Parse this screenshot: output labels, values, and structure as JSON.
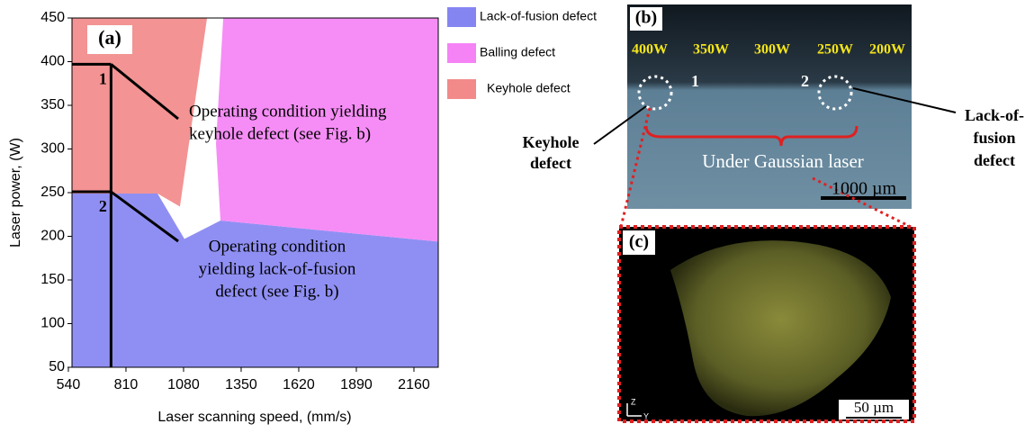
{
  "chart_data": {
    "type": "area",
    "panel_label": "(a)",
    "xlabel": "Laser scanning speed, (mm/s)",
    "ylabel": "Laser power, (W)",
    "xlim": [
      557,
      2274
    ],
    "ylim": [
      50,
      450
    ],
    "xticks": [
      540,
      810,
      1080,
      1350,
      1620,
      1890,
      2160
    ],
    "yticks": [
      50,
      100,
      150,
      200,
      250,
      300,
      350,
      400,
      450
    ],
    "series": [
      {
        "name": "Lack-of-fusion defect",
        "color": "#8585f2",
        "x": [
          557,
          958,
          1084,
          1253,
          2274,
          2274,
          557
        ],
        "values": [
          249,
          249,
          197,
          218,
          194,
          50,
          50
        ]
      },
      {
        "name": "Balling defect",
        "color": "#f583f5",
        "x": [
          1266,
          2274,
          2274,
          1253,
          1232
        ],
        "values": [
          450,
          450,
          194,
          218,
          306
        ]
      },
      {
        "name": "Keyhole defect",
        "color": "#f28a8a",
        "x": [
          557,
          1190,
          1063,
          958,
          557
        ],
        "values": [
          450,
          450,
          234,
          249,
          249
        ]
      }
    ],
    "markers": [
      {
        "label": "1",
        "x": 740,
        "y": 397,
        "text": [
          "Operating condition yielding",
          "keyhole defect (see Fig. b)"
        ]
      },
      {
        "label": "2",
        "x": 740,
        "y": 251,
        "text": [
          "Operating condition",
          "yielding lack-of-fusion",
          "defect (see Fig. b)"
        ]
      }
    ]
  },
  "panel_b": {
    "label": "(b)",
    "powers": [
      "400W",
      "350W",
      "300W",
      "250W",
      "200W"
    ],
    "points": [
      "1",
      "2"
    ],
    "caption": "Under Gaussian laser",
    "scale": "1000 µm",
    "left_note": [
      "Keyhole",
      "defect"
    ],
    "right_note": [
      "Lack-of-",
      "fusion",
      "defect"
    ]
  },
  "panel_c": {
    "label": "(c)",
    "scale": "50 µm",
    "axes": [
      "Z",
      "Y"
    ]
  }
}
